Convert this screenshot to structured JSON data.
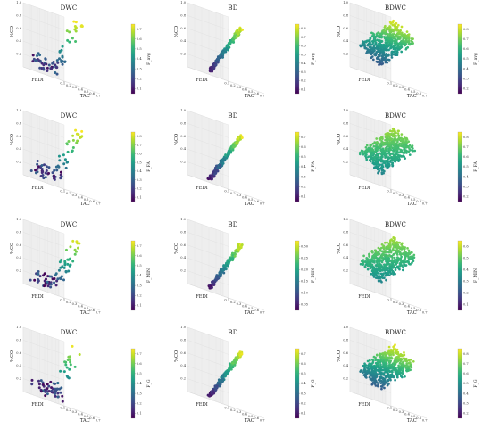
{
  "colormap": [
    "#440154",
    "#482878",
    "#3e4989",
    "#31688e",
    "#26828e",
    "#1f9e89",
    "#35b779",
    "#6ece58",
    "#b5de2b",
    "#fde725"
  ],
  "axes": {
    "x_label": "TAC",
    "y_label": "FEDI",
    "z_label": "%CO",
    "x_ticks": [
      "0.1",
      "0.2",
      "0.3",
      "0.4",
      "0.5",
      "0.6",
      "0.7"
    ],
    "z_ticks": [
      "0.2",
      "0.4",
      "0.6",
      "0.8",
      "1.0"
    ]
  },
  "chart_data": [
    {
      "type": "scatter",
      "title": "DWC",
      "colorbar_label": "F_avg",
      "colorbar_ticks": [
        "0.1",
        "0.2",
        "0.3",
        "0.4",
        "0.5",
        "0.6",
        "0.7"
      ],
      "pattern": "dwc",
      "row": 0,
      "col": 0
    },
    {
      "type": "scatter",
      "title": "BD",
      "colorbar_label": "F_avg",
      "colorbar_ticks": [
        "0.1",
        "0.2",
        "0.3",
        "0.4",
        "0.5",
        "0.6",
        "0.7",
        "0.8"
      ],
      "pattern": "bd",
      "row": 0,
      "col": 1
    },
    {
      "type": "scatter",
      "title": "BDWC",
      "colorbar_label": "F_avg",
      "colorbar_ticks": [
        "0.2",
        "0.3",
        "0.4",
        "0.5",
        "0.6",
        "0.7",
        "0.8"
      ],
      "pattern": "bdwc",
      "row": 0,
      "col": 2
    },
    {
      "type": "scatter",
      "title": "DWC",
      "colorbar_label": "F_FA",
      "colorbar_ticks": [
        "0.1",
        "0.2",
        "0.3",
        "0.4",
        "0.5",
        "0.6",
        "0.7",
        "0.8"
      ],
      "pattern": "dwc",
      "row": 1,
      "col": 0
    },
    {
      "type": "scatter",
      "title": "BD",
      "colorbar_label": "F_FA",
      "colorbar_ticks": [
        "0.1",
        "0.2",
        "0.3",
        "0.4",
        "0.5",
        "0.6",
        "0.7"
      ],
      "pattern": "bd",
      "row": 1,
      "col": 1
    },
    {
      "type": "scatter",
      "title": "BDWC",
      "colorbar_label": "F_FA",
      "colorbar_ticks": [
        "0.2",
        "0.3",
        "0.4",
        "0.5",
        "0.6",
        "0.7",
        "0.8"
      ],
      "pattern": "bdwc",
      "row": 1,
      "col": 2
    },
    {
      "type": "scatter",
      "title": "DWC",
      "colorbar_label": "F_MIN",
      "colorbar_ticks": [
        "0.1",
        "0.2",
        "0.3",
        "0.4",
        "0.5",
        "0.6",
        "0.7"
      ],
      "pattern": "dwc",
      "row": 2,
      "col": 0
    },
    {
      "type": "scatter",
      "title": "BD",
      "colorbar_label": "F_MIN",
      "colorbar_ticks": [
        "0.05",
        "0.10",
        "0.15",
        "0.20",
        "0.25",
        "0.30"
      ],
      "pattern": "bd",
      "row": 2,
      "col": 1
    },
    {
      "type": "scatter",
      "title": "BDWC",
      "colorbar_label": "F_MIN",
      "colorbar_ticks": [
        "0.1",
        "0.2",
        "0.3",
        "0.4",
        "0.5",
        "0.6"
      ],
      "pattern": "bdwc",
      "row": 2,
      "col": 2
    },
    {
      "type": "scatter",
      "title": "DWC",
      "colorbar_label": "F_G",
      "colorbar_ticks": [
        "0.1",
        "0.2",
        "0.3",
        "0.4",
        "0.5",
        "0.6",
        "0.7"
      ],
      "pattern": "dwc",
      "row": 3,
      "col": 0
    },
    {
      "type": "scatter",
      "title": "BD",
      "colorbar_label": "F_G",
      "colorbar_ticks": [
        "0.1",
        "0.2",
        "0.3",
        "0.4",
        "0.5",
        "0.6",
        "0.7"
      ],
      "pattern": "bd",
      "row": 3,
      "col": 1
    },
    {
      "type": "scatter",
      "title": "BDWC",
      "colorbar_label": "F_G",
      "colorbar_ticks": [
        "0.2",
        "0.3",
        "0.4",
        "0.5",
        "0.6",
        "0.7",
        "0.8"
      ],
      "pattern": "bdwc",
      "row": 3,
      "col": 2
    }
  ]
}
